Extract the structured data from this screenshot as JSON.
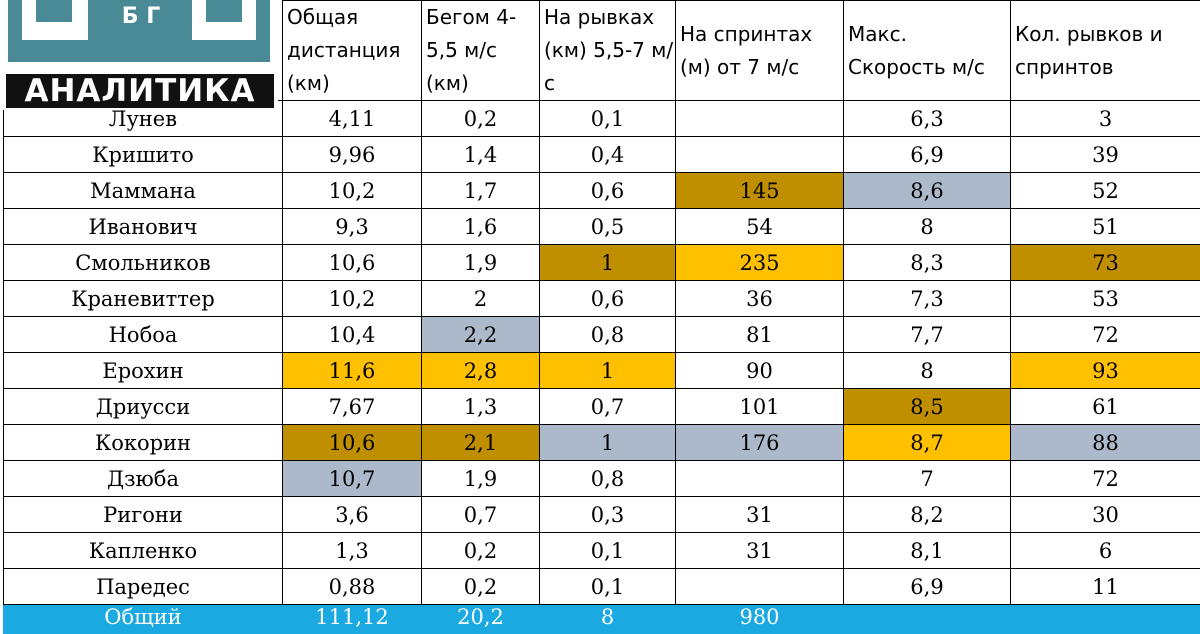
{
  "logo": {
    "top_text": "Б Г",
    "brand": "АНАЛИТИКА",
    "colors": {
      "teal": "#4a8a97",
      "dark": "#111111"
    }
  },
  "headers": [
    "Общая дистанция (км)",
    "Бегом 4-5,5 м/с (км)",
    "На рывках (км) 5,5-7 м/с",
    "На спринтах (м) от 7 м/с",
    "Макс. Скорость м/с",
    "Кол. рывков и спринтов"
  ],
  "rows": [
    {
      "name": "Лунев",
      "cells": [
        "4,11",
        "0,2",
        "0,1",
        "",
        "6,3",
        "3"
      ]
    },
    {
      "name": "Кришито",
      "cells": [
        "9,96",
        "1,4",
        "0,4",
        "",
        "6,9",
        "39"
      ]
    },
    {
      "name": "Маммана",
      "cells": [
        "10,2",
        "1,7",
        "0,6",
        "145",
        "8,6",
        "52"
      ]
    },
    {
      "name": "Иванович",
      "cells": [
        "9,3",
        "1,6",
        "0,5",
        "54",
        "8",
        "51"
      ]
    },
    {
      "name": "Смольников",
      "cells": [
        "10,6",
        "1,9",
        "1",
        "235",
        "8,3",
        "73"
      ]
    },
    {
      "name": "Краневиттер",
      "cells": [
        "10,2",
        "2",
        "0,6",
        "36",
        "7,3",
        "53"
      ]
    },
    {
      "name": "Нобоа",
      "cells": [
        "10,4",
        "2,2",
        "0,8",
        "81",
        "7,7",
        "72"
      ]
    },
    {
      "name": "Ерохин",
      "cells": [
        "11,6",
        "2,8",
        "1",
        "90",
        "8",
        "93"
      ]
    },
    {
      "name": "Дриусси",
      "cells": [
        "7,67",
        "1,3",
        "0,7",
        "101",
        "8,5",
        "61"
      ]
    },
    {
      "name": "Кокорин",
      "cells": [
        "10,6",
        "2,1",
        "1",
        "176",
        "8,7",
        "88"
      ]
    },
    {
      "name": "Дзюба",
      "cells": [
        "10,7",
        "1,9",
        "0,8",
        "",
        "7",
        "72"
      ]
    },
    {
      "name": "Ригони",
      "cells": [
        "3,6",
        "0,7",
        "0,3",
        "31",
        "8,2",
        "30"
      ]
    },
    {
      "name": "Капленко",
      "cells": [
        "1,3",
        "0,2",
        "0,1",
        "31",
        "8,1",
        "6"
      ]
    },
    {
      "name": "Паредес",
      "cells": [
        "0,88",
        "0,2",
        "0,1",
        "",
        "6,9",
        "11"
      ]
    }
  ],
  "total": {
    "name": "Общий",
    "cells": [
      "111,12",
      "20,2",
      "8",
      "980",
      "",
      ""
    ]
  },
  "highlight_colors": {
    "gold": "#ffc000",
    "dark_gold": "#bf8f00",
    "gray": "#acb9ca",
    "total_bar": "#1aa9e0"
  }
}
